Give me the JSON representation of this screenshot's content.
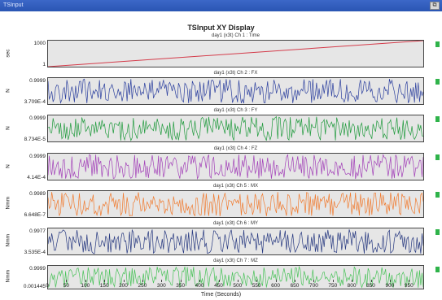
{
  "window": {
    "title": "TSInput",
    "button_icon": "restore-icon"
  },
  "display": {
    "title": "TSInput XY Display"
  },
  "x_axis": {
    "label": "Time (Seconds)",
    "ticks": [
      "0",
      "50",
      "100",
      "150",
      "200",
      "250",
      "300",
      "350",
      "400",
      "450",
      "500",
      "550",
      "600",
      "650",
      "700",
      "750",
      "800",
      "850",
      "900",
      "950"
    ],
    "range": [
      0,
      990
    ]
  },
  "colors": {
    "titlebar": "#2f5cbf",
    "plot_bg": "#e6e6e6",
    "marker": "#2fb34a"
  },
  "chart_data": [
    {
      "type": "line",
      "title": "day1 (x3t) Ch 1 : Time",
      "ylabel": "sec",
      "ymax": "1000",
      "ymin": "1",
      "ylim": [
        1,
        1000
      ],
      "series": [
        {
          "color": "#d43b4a",
          "pattern": "linear",
          "x": [
            0,
            990
          ],
          "values": [
            1,
            1000
          ]
        }
      ]
    },
    {
      "type": "line",
      "title": "day1 (x3t) Ch 2 : FX",
      "ylabel": "N",
      "ymax": "0.9999",
      "ymin": "3.709E-4",
      "ylim": [
        0.0003709,
        0.9999
      ],
      "series": [
        {
          "color": "#2b3f9e",
          "pattern": "noise"
        }
      ]
    },
    {
      "type": "line",
      "title": "day1 (x3t) Ch 3 : FY",
      "ylabel": "N",
      "ymax": "0.9999",
      "ymin": "8.734E-5",
      "ylim": [
        8.734e-05,
        0.9999
      ],
      "series": [
        {
          "color": "#1f9a3c",
          "pattern": "noise"
        }
      ]
    },
    {
      "type": "line",
      "title": "day1 (x3t) Ch 4 : FZ",
      "ylabel": "N",
      "ymax": "0.9999",
      "ymin": "4.14E-4",
      "ylim": [
        0.000414,
        0.9999
      ],
      "series": [
        {
          "color": "#a23fb8",
          "pattern": "noise"
        }
      ]
    },
    {
      "type": "line",
      "title": "day1 (x3t) Ch 5 : MX",
      "ylabel": "Nmm",
      "ymax": "0.9989",
      "ymin": "6.648E-7",
      "ylim": [
        6.648e-07,
        0.9989
      ],
      "series": [
        {
          "color": "#f07a2e",
          "pattern": "noise"
        }
      ]
    },
    {
      "type": "line",
      "title": "day1 (x3t) Ch 6 : MY",
      "ylabel": "Nmm",
      "ymax": "0.9977",
      "ymin": "3.535E-4",
      "ylim": [
        0.0003535,
        0.9977
      ],
      "series": [
        {
          "color": "#25377f",
          "pattern": "noise"
        }
      ]
    },
    {
      "type": "line",
      "title": "day1 (x3t) Ch 7 : MZ",
      "ylabel": "Nmm",
      "ymax": "0.9999",
      "ymin": "0.001445",
      "ylim": [
        0.001445,
        0.9999
      ],
      "series": [
        {
          "color": "#47c257",
          "pattern": "noise"
        }
      ]
    }
  ]
}
